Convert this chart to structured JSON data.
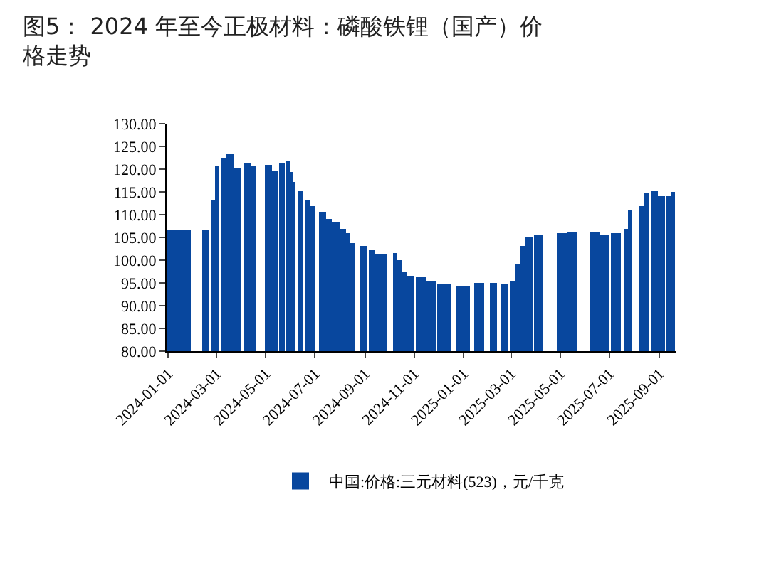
{
  "chart_data": {
    "type": "bar",
    "title": "图5： 2024 年至今正极材料：磷酸铁锂（国产）价格走势",
    "x": [
      "2024-01-01",
      "2024-01-20",
      "2024-02-08",
      "2024-02-17",
      "2024-02-25",
      "2024-03-02",
      "2024-03-10",
      "2024-03-18",
      "2024-03-26",
      "2024-04-08",
      "2024-04-16",
      "2024-05-04",
      "2024-05-12",
      "2024-05-21",
      "2024-05-29",
      "2024-06-02",
      "2024-06-05",
      "2024-06-13",
      "2024-06-22",
      "2024-06-28",
      "2024-07-10",
      "2024-07-18",
      "2024-07-27",
      "2024-08-05",
      "2024-08-11",
      "2024-08-16",
      "2024-08-31",
      "2024-09-09",
      "2024-09-17",
      "2024-09-25",
      "2024-10-02",
      "2024-10-08",
      "2024-10-14",
      "2024-10-20",
      "2024-10-28",
      "2024-11-09",
      "2024-11-21",
      "2024-12-08",
      "2024-12-31",
      "2025-01-18",
      "2025-01-24",
      "2025-01-29",
      "2025-02-07",
      "2025-02-22",
      "2025-03-03",
      "2025-03-09",
      "2025-03-15",
      "2025-03-24",
      "2025-04-04",
      "2025-05-03",
      "2025-05-15",
      "2025-06-13",
      "2025-06-25",
      "2025-07-09",
      "2025-07-21",
      "2025-07-27",
      "2025-08-10",
      "2025-08-16",
      "2025-08-25",
      "2025-09-03",
      "2025-09-12",
      "2025-09-17"
    ],
    "series": [
      {
        "name": "中国:价格:三元材料(523)，元/千克",
        "color": "#08479e",
        "values": [
          106.6,
          106.6,
          null,
          106.6,
          113.1,
          120.6,
          122.5,
          123.5,
          120.2,
          121.4,
          120.6,
          120.9,
          119.7,
          121.4,
          122.0,
          119.4,
          117.3,
          115.2,
          113.1,
          112.0,
          110.5,
          109.1,
          108.4,
          107.0,
          105.8,
          103.7,
          103.2,
          102.1,
          101.4,
          101.1,
          null,
          101.6,
          100.0,
          97.4,
          96.6,
          96.2,
          95.3,
          94.8,
          94.5,
          95.0,
          95.1,
          null,
          95.0,
          94.7,
          95.3,
          99.0,
          103.2,
          104.9,
          105.6,
          105.8,
          106.2,
          106.2,
          105.6,
          106.0,
          107.0,
          111.0,
          111.8,
          114.7,
          115.2,
          114.1,
          114.1,
          115.0
        ]
      }
    ],
    "xlim": [
      "2023-12-30",
      "2025-09-22"
    ],
    "xticks": [
      "2024-01-01",
      "2024-03-01",
      "2024-05-01",
      "2024-07-01",
      "2024-09-01",
      "2024-11-01",
      "2025-01-01",
      "2025-03-01",
      "2025-05-01",
      "2025-07-01",
      "2025-09-01"
    ],
    "ylim": [
      80,
      130
    ],
    "yticks": [
      {
        "value": 80,
        "label": "80.00"
      },
      {
        "value": 85,
        "label": "85.00"
      },
      {
        "value": 90,
        "label": "90.00"
      },
      {
        "value": 95,
        "label": "95.00"
      },
      {
        "value": 100,
        "label": "100.00"
      },
      {
        "value": 105,
        "label": "105.00"
      },
      {
        "value": 110,
        "label": "110.00"
      },
      {
        "value": 115,
        "label": "115.00"
      },
      {
        "value": 120,
        "label": "120.00"
      },
      {
        "value": 125,
        "label": "125.00"
      },
      {
        "value": 130,
        "label": "130.00"
      }
    ],
    "grid": false,
    "legend": "bottom"
  }
}
